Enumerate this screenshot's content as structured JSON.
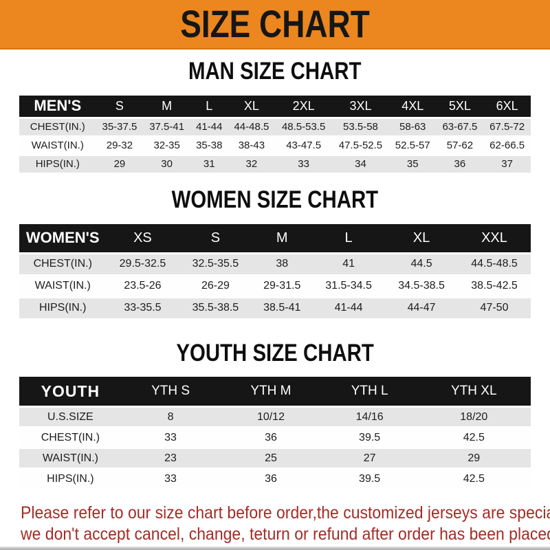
{
  "banner": {
    "title": "SIZE CHART"
  },
  "colors": {
    "banner_bg": "#EC861E",
    "table_header_bg": "#161616",
    "row_alt_bg": "#E5E5E5",
    "note_text": "#A32C26"
  },
  "men": {
    "title": "MAN SIZE CHART",
    "table": {
      "header": [
        "MEN'S",
        "S",
        "M",
        "L",
        "XL",
        "2XL",
        "3XL",
        "4XL",
        "5XL",
        "6XL"
      ],
      "rows": [
        [
          "CHEST(IN.)",
          "35-37.5",
          "37.5-41",
          "41-44",
          "44-48.5",
          "48.5-53.5",
          "53.5-58",
          "58-63",
          "63-67.5",
          "67.5-72"
        ],
        [
          "WAIST(IN.)",
          "29-32",
          "32-35",
          "35-38",
          "38-43",
          "43-47.5",
          "47.5-52.5",
          "52.5-57",
          "57-62",
          "62-66.5"
        ],
        [
          "HIPS(IN.)",
          "29",
          "30",
          "31",
          "32",
          "33",
          "34",
          "35",
          "36",
          "37"
        ]
      ]
    }
  },
  "women": {
    "title": "WOMEN SIZE CHART",
    "table": {
      "header": [
        "WOMEN'S",
        "XS",
        "S",
        "M",
        "L",
        "XL",
        "XXL"
      ],
      "rows": [
        [
          "CHEST(IN.)",
          "29.5-32.5",
          "32.5-35.5",
          "38",
          "41",
          "44.5",
          "44.5-48.5"
        ],
        [
          "WAIST(IN.)",
          "23.5-26",
          "26-29",
          "29-31.5",
          "31.5-34.5",
          "34.5-38.5",
          "38.5-42.5"
        ],
        [
          "HIPS(IN.)",
          "33-35.5",
          "35.5-38.5",
          "38.5-41",
          "41-44",
          "44-47",
          "47-50"
        ]
      ]
    }
  },
  "youth": {
    "title": "YOUTH SIZE CHART",
    "table": {
      "header": [
        "YOUTH",
        "YTH S",
        "YTH M",
        "YTH L",
        "YTH XL"
      ],
      "rows": [
        [
          "U.S.SIZE",
          "8",
          "10/12",
          "14/16",
          "18/20"
        ],
        [
          "CHEST(IN.)",
          "33",
          "36",
          "39.5",
          "42.5"
        ],
        [
          "WAIST(IN.)",
          "23",
          "25",
          "27",
          "29"
        ],
        [
          "HIPS(IN.)",
          "33",
          "36",
          "39.5",
          "42.5"
        ]
      ]
    }
  },
  "footer": {
    "line1": "Please refer to our size chart before order,the customized jerseys are special products,",
    "line2": "we don't accept cancel, change, teturn or refund after order has been placed!"
  }
}
